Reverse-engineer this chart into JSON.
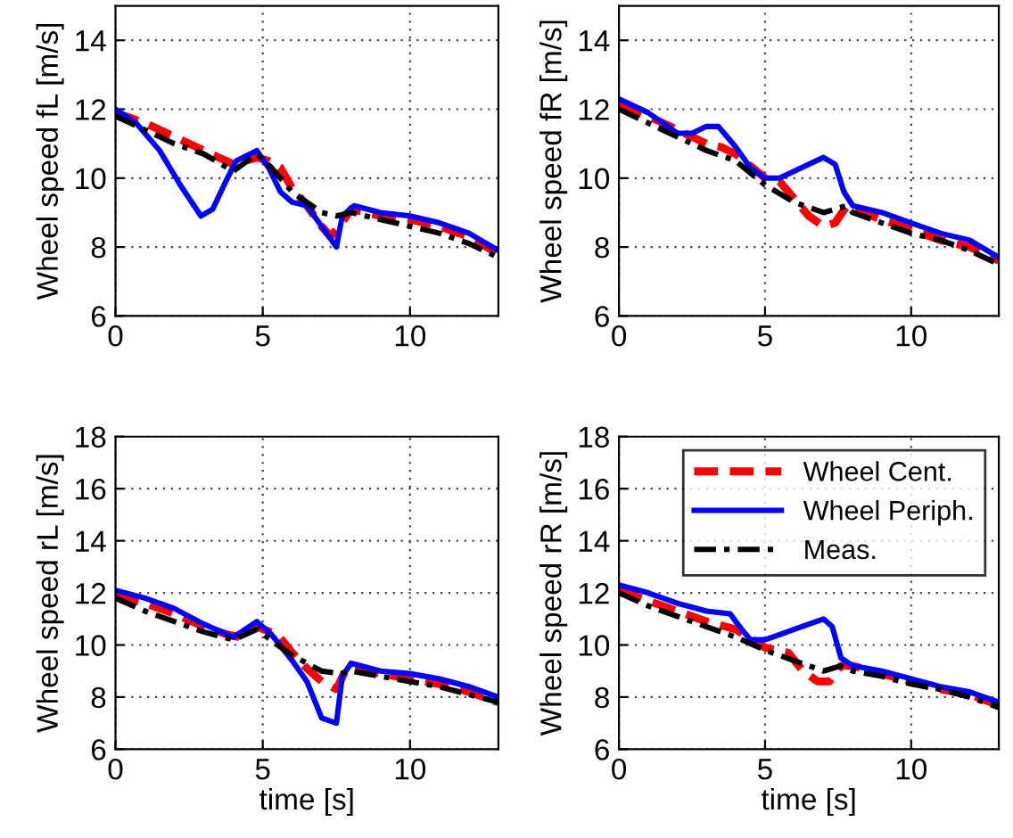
{
  "chart_data": [
    {
      "type": "line",
      "ylabel": "Wheel speed fL [m/s]",
      "xlim": [
        0,
        13
      ],
      "xticks": [
        0,
        5,
        10
      ],
      "ylim": [
        6,
        15
      ],
      "yticks": [
        6,
        8,
        10,
        12,
        14
      ],
      "grid": true,
      "legend": false,
      "series": [
        {
          "color": "#ff0000",
          "line_style": "dashed",
          "x": [
            0,
            1,
            2,
            3,
            4,
            4.8,
            5.2,
            5.6,
            6,
            6.5,
            7,
            7.3,
            7.6,
            8,
            9,
            10,
            11,
            12,
            13
          ],
          "values": [
            11.9,
            11.6,
            11.2,
            10.8,
            10.4,
            10.6,
            10.5,
            10.3,
            9.7,
            9.2,
            8.6,
            8.3,
            8.6,
            9.1,
            8.9,
            8.8,
            8.6,
            8.3,
            7.8
          ]
        },
        {
          "color": "#0000ff",
          "line_style": "solid",
          "x": [
            0,
            0.7,
            1.5,
            2.2,
            2.9,
            3.3,
            3.8,
            4.1,
            4.8,
            5.2,
            5.6,
            6,
            6.5,
            7,
            7.5,
            7.7,
            8.1,
            9,
            10,
            11,
            12,
            13
          ],
          "values": [
            12.0,
            11.6,
            10.8,
            9.8,
            8.9,
            9.1,
            10.0,
            10.5,
            10.8,
            10.3,
            9.6,
            9.3,
            9.2,
            8.6,
            8.0,
            8.9,
            9.2,
            9.0,
            8.9,
            8.7,
            8.4,
            7.9
          ]
        },
        {
          "color": "#000000",
          "line_style": "dashdot",
          "x": [
            0,
            1,
            2,
            3,
            4,
            4.8,
            5.3,
            6,
            7,
            7.5,
            8,
            9,
            10,
            11,
            12,
            13
          ],
          "values": [
            11.8,
            11.4,
            11.0,
            10.7,
            10.2,
            10.7,
            10.3,
            9.6,
            9.0,
            8.9,
            9.0,
            8.8,
            8.6,
            8.4,
            8.1,
            7.7
          ]
        }
      ]
    },
    {
      "type": "line",
      "ylabel": "Wheel speed fR [m/s]",
      "xlim": [
        0,
        13
      ],
      "xticks": [
        0,
        5,
        10
      ],
      "ylim": [
        6,
        15
      ],
      "yticks": [
        6,
        8,
        10,
        12,
        14
      ],
      "grid": true,
      "legend": false,
      "series": [
        {
          "color": "#ff0000",
          "line_style": "dashed",
          "x": [
            0,
            1,
            2,
            3,
            3.5,
            4,
            5,
            5.5,
            6,
            6.5,
            7,
            7.4,
            7.8,
            8,
            9,
            10,
            11,
            12,
            13
          ],
          "values": [
            12.1,
            11.8,
            11.4,
            11.0,
            10.9,
            10.7,
            10.0,
            9.9,
            9.4,
            8.9,
            8.6,
            8.7,
            9.2,
            9.1,
            8.8,
            8.5,
            8.2,
            8.0,
            7.6
          ]
        },
        {
          "color": "#0000ff",
          "line_style": "solid",
          "x": [
            0,
            1,
            2,
            2.5,
            3,
            3.4,
            4,
            4.5,
            5,
            5.5,
            6,
            6.5,
            7,
            7.4,
            7.7,
            8,
            9,
            10,
            11,
            12,
            13
          ],
          "values": [
            12.3,
            11.9,
            11.3,
            11.3,
            11.5,
            11.5,
            10.9,
            10.3,
            10.0,
            10.0,
            10.2,
            10.4,
            10.6,
            10.4,
            9.6,
            9.2,
            9.0,
            8.7,
            8.4,
            8.2,
            7.7
          ]
        },
        {
          "color": "#000000",
          "line_style": "dashdot",
          "x": [
            0,
            1,
            2,
            3,
            4,
            5,
            6,
            7,
            7.8,
            8,
            9,
            10,
            11,
            12,
            13
          ],
          "values": [
            12.0,
            11.6,
            11.2,
            10.8,
            10.5,
            9.8,
            9.3,
            9.0,
            9.2,
            9.0,
            8.7,
            8.4,
            8.2,
            7.9,
            7.5
          ]
        }
      ]
    },
    {
      "type": "line",
      "xlabel": "time [s]",
      "ylabel": "Wheel speed rL [m/s]",
      "xlim": [
        0,
        13
      ],
      "xticks": [
        0,
        5,
        10
      ],
      "ylim": [
        6,
        18
      ],
      "yticks": [
        6,
        8,
        10,
        12,
        14,
        16,
        18
      ],
      "grid": true,
      "legend": false,
      "series": [
        {
          "color": "#ff0000",
          "line_style": "dashed",
          "x": [
            0,
            1,
            2,
            3,
            3.8,
            4.2,
            4.8,
            5.5,
            6,
            6.5,
            7,
            7.5,
            7.8,
            8,
            9,
            10,
            11,
            12,
            13
          ],
          "values": [
            11.9,
            11.6,
            11.2,
            10.7,
            10.4,
            10.3,
            10.7,
            10.4,
            9.7,
            9.1,
            8.6,
            8.3,
            9.0,
            9.1,
            8.9,
            8.7,
            8.5,
            8.2,
            7.8
          ]
        },
        {
          "color": "#0000ff",
          "line_style": "solid",
          "x": [
            0,
            1,
            2,
            3,
            4,
            4.8,
            5.3,
            6,
            6.5,
            7,
            7.5,
            7.7,
            8,
            9,
            10,
            11,
            12,
            13
          ],
          "values": [
            12.1,
            11.8,
            11.4,
            10.8,
            10.3,
            10.9,
            10.4,
            9.4,
            8.6,
            7.2,
            7.0,
            8.8,
            9.3,
            9.0,
            8.9,
            8.7,
            8.4,
            8.0
          ]
        },
        {
          "color": "#000000",
          "line_style": "dashdot",
          "x": [
            0,
            1,
            2,
            3,
            4,
            4.8,
            5.5,
            6,
            7,
            7.6,
            8,
            9,
            10,
            11,
            12,
            13
          ],
          "values": [
            11.8,
            11.3,
            10.9,
            10.5,
            10.2,
            10.6,
            10.0,
            9.6,
            9.0,
            8.9,
            9.0,
            8.8,
            8.6,
            8.4,
            8.1,
            7.8
          ]
        }
      ]
    },
    {
      "type": "line",
      "xlabel": "time [s]",
      "ylabel": "Wheel speed rR [m/s]",
      "xlim": [
        0,
        13
      ],
      "xticks": [
        0,
        5,
        10
      ],
      "ylim": [
        6,
        18
      ],
      "yticks": [
        6,
        8,
        10,
        12,
        14,
        16,
        18
      ],
      "grid": true,
      "legend": "top right",
      "series": [
        {
          "name": "Wheel Cent.",
          "color": "#ff0000",
          "line_style": "dashed",
          "x": [
            0,
            1,
            2,
            3,
            4,
            5,
            5.8,
            6.3,
            6.8,
            7.2,
            7.6,
            8,
            9,
            10,
            11,
            12,
            13
          ],
          "values": [
            12.1,
            11.7,
            11.3,
            10.9,
            10.6,
            9.9,
            9.7,
            9.0,
            8.6,
            8.6,
            9.2,
            9.2,
            8.9,
            8.6,
            8.3,
            8.1,
            7.7
          ]
        },
        {
          "name": "Wheel Periph.",
          "color": "#0000ff",
          "line_style": "solid",
          "x": [
            0,
            1,
            2,
            3,
            3.8,
            4.2,
            4.5,
            5,
            5.5,
            6,
            6.5,
            7,
            7.3,
            7.6,
            8,
            9,
            10,
            11,
            12,
            13
          ],
          "values": [
            12.3,
            12.0,
            11.6,
            11.3,
            11.2,
            10.6,
            10.2,
            10.2,
            10.4,
            10.6,
            10.8,
            11.0,
            10.7,
            9.5,
            9.2,
            9.0,
            8.7,
            8.4,
            8.2,
            7.8
          ]
        },
        {
          "name": "Meas.",
          "color": "#000000",
          "line_style": "dashdot",
          "x": [
            0,
            1,
            2,
            3,
            4,
            5,
            6,
            7,
            7.6,
            8,
            9,
            10,
            11,
            12,
            13
          ],
          "values": [
            12.0,
            11.5,
            11.1,
            10.7,
            10.3,
            9.8,
            9.4,
            9.0,
            9.2,
            9.0,
            8.8,
            8.5,
            8.3,
            8.0,
            7.6
          ]
        }
      ]
    }
  ]
}
